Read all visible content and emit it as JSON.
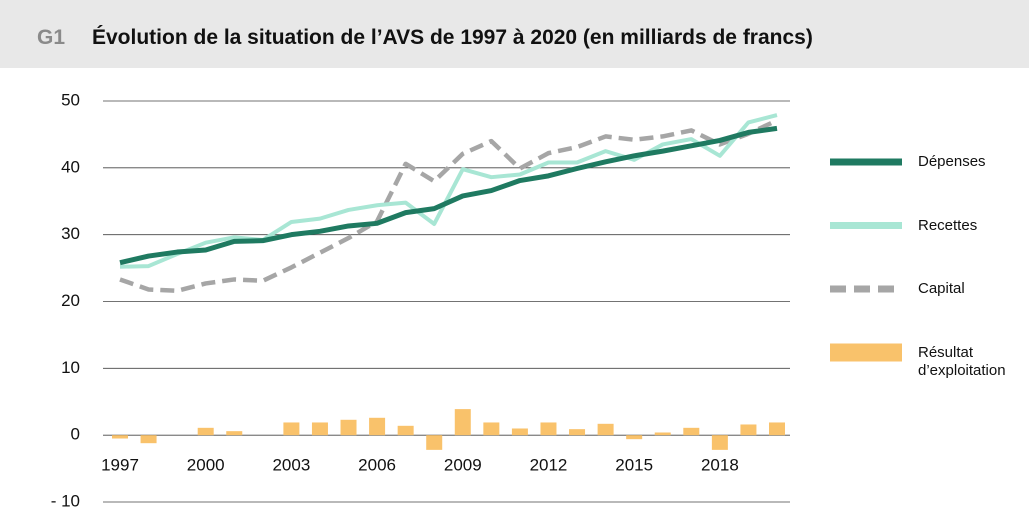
{
  "chart_data": {
    "type": "line",
    "label": "G1",
    "title": "Évolution de la situation de l’AVS de 1997 à 2020 (en milliards de francs)",
    "x": [
      1997,
      1998,
      1999,
      2000,
      2001,
      2002,
      2003,
      2004,
      2005,
      2006,
      2007,
      2008,
      2009,
      2010,
      2011,
      2012,
      2013,
      2014,
      2015,
      2016,
      2017,
      2018,
      2019,
      2020
    ],
    "xlim": [
      1997,
      2020
    ],
    "xticks": [
      1997,
      2000,
      2003,
      2006,
      2009,
      2012,
      2015,
      2018
    ],
    "ylim": [
      -10,
      50
    ],
    "yticks": [
      50,
      40,
      30,
      20,
      10,
      0,
      {
        "value": -10,
        "label": "- 10"
      }
    ],
    "grid": true,
    "legend": "right",
    "series": [
      {
        "name": "Résultat d’exploitation",
        "type": "bar",
        "color": "#f9c26b",
        "values": [
          -0.5,
          -1.2,
          0,
          1.1,
          0.6,
          0,
          1.9,
          1.9,
          2.3,
          2.6,
          1.4,
          -2.2,
          3.9,
          1.9,
          1.0,
          1.9,
          0.9,
          1.7,
          -0.6,
          0.4,
          1.1,
          -2.2,
          1.6,
          1.9
        ]
      },
      {
        "name": "Capital",
        "type": "line",
        "color": "#a6a6a6",
        "dashed": true,
        "values": [
          23.3,
          21.8,
          21.6,
          22.7,
          23.3,
          23.1,
          25.1,
          27.3,
          29.5,
          32.0,
          40.6,
          38.0,
          42.1,
          44.0,
          39.9,
          42.2,
          43.1,
          44.7,
          44.2,
          44.7,
          45.6,
          43.5,
          45.1,
          47.1
        ]
      },
      {
        "name": "Recettes",
        "type": "line",
        "color": "#a8e6d4",
        "values": [
          25.2,
          25.3,
          27.1,
          28.8,
          29.6,
          29.2,
          31.9,
          32.4,
          33.7,
          34.4,
          34.8,
          31.6,
          39.8,
          38.6,
          39.0,
          40.8,
          40.8,
          42.5,
          41.2,
          43.5,
          44.3,
          41.8,
          46.8,
          47.9
        ]
      },
      {
        "name": "Dépenses",
        "type": "line",
        "color": "#1f7a61",
        "values": [
          25.8,
          26.8,
          27.4,
          27.7,
          29.0,
          29.1,
          30.0,
          30.5,
          31.3,
          31.7,
          33.3,
          33.9,
          35.8,
          36.6,
          38.1,
          38.8,
          39.9,
          40.9,
          41.8,
          42.5,
          43.3,
          44.1,
          45.3,
          45.9
        ]
      }
    ]
  }
}
